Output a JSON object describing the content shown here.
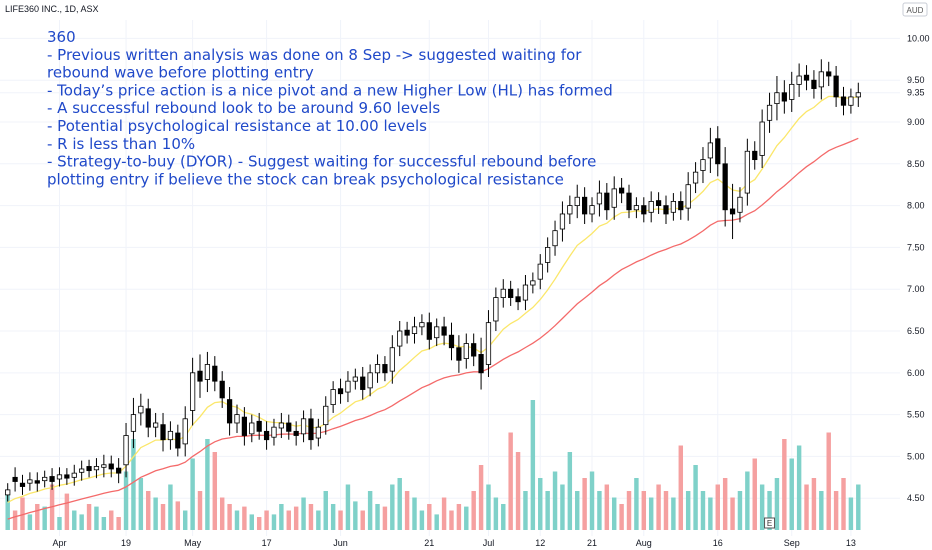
{
  "chart_data": {
    "type": "candlestick",
    "symbol": "LIFE360 INC., 1D, ASX",
    "currency": "AUD",
    "annotation": [
      "360",
      "- Previous written analysis was done on 8 Sep -> suggested waiting for",
      "rebound wave before plotting entry",
      "- Today’s price action is a nice pivot and a new Higher Low (HL) has formed",
      "- A successful rebound look to be around 9.60 levels",
      "- Potential psychological resistance at 10.00 levels",
      "- R is less than 10%",
      "- Strategy-to-buy (DYOR) - Suggest waiting for successful rebound before",
      "plotting entry if believe the stock can break psychological resistance"
    ],
    "y_ticks": [
      "10.00",
      "9.50",
      "9.35",
      "9.00",
      "8.50",
      "8.00",
      "7.50",
      "7.00",
      "6.50",
      "6.00",
      "5.50",
      "5.00",
      "4.50"
    ],
    "x_ticks": [
      {
        "label": "Apr",
        "index": 7
      },
      {
        "label": "19",
        "index": 16
      },
      {
        "label": "May",
        "index": 25
      },
      {
        "label": "17",
        "index": 35
      },
      {
        "label": "Jun",
        "index": 45
      },
      {
        "label": "21",
        "index": 57
      },
      {
        "label": "Jul",
        "index": 65
      },
      {
        "label": "12",
        "index": 72
      },
      {
        "label": "21",
        "index": 79
      },
      {
        "label": "Aug",
        "index": 86
      },
      {
        "label": "16",
        "index": 96
      },
      {
        "label": "Sep",
        "index": 106
      },
      {
        "label": "13",
        "index": 114
      }
    ],
    "ylim": [
      4.12,
      10.22
    ],
    "earnings_marker": {
      "label": "E",
      "index": 103
    },
    "closes": [
      4.6,
      4.7,
      4.64,
      4.72,
      4.68,
      4.75,
      4.7,
      4.78,
      4.74,
      4.8,
      4.85,
      4.83,
      4.88,
      4.9,
      4.85,
      4.8,
      5.25,
      5.5,
      5.6,
      5.35,
      5.4,
      5.2,
      5.3,
      5.1,
      5.45,
      6.0,
      5.9,
      6.1,
      5.9,
      5.7,
      5.4,
      5.5,
      5.25,
      5.4,
      5.3,
      5.2,
      5.35,
      5.4,
      5.3,
      5.25,
      5.45,
      5.2,
      5.35,
      5.6,
      5.8,
      5.75,
      5.9,
      5.95,
      5.8,
      6.0,
      6.1,
      6.0,
      6.3,
      6.5,
      6.45,
      6.55,
      6.6,
      6.4,
      6.55,
      6.45,
      6.3,
      6.15,
      6.35,
      6.2,
      6.0,
      6.6,
      6.9,
      7.0,
      6.9,
      6.85,
      7.05,
      7.1,
      7.3,
      7.5,
      7.7,
      7.9,
      8.0,
      8.1,
      7.9,
      8.0,
      8.15,
      7.95,
      8.2,
      8.15,
      7.95,
      8.0,
      7.9,
      8.05,
      8.0,
      7.9,
      8.05,
      7.95,
      8.25,
      8.4,
      8.55,
      8.75,
      8.5,
      7.95,
      7.9,
      8.1,
      8.65,
      8.55,
      9.0,
      9.2,
      9.35,
      9.25,
      9.45,
      9.55,
      9.5,
      9.4,
      9.6,
      9.55,
      9.3,
      9.2,
      9.3,
      9.35
    ],
    "open_offsets": [
      -0.06,
      0.05,
      0.04,
      -0.04,
      0.03,
      -0.04,
      0.06,
      -0.05,
      0.04,
      -0.05,
      -0.04,
      0.05,
      -0.04,
      -0.03,
      0.06,
      0.06,
      -0.35,
      -0.2,
      -0.08,
      0.22,
      -0.05,
      0.18,
      -0.1,
      0.18,
      -0.3,
      -0.45,
      0.12,
      -0.18,
      0.18,
      0.2,
      0.28,
      -0.1,
      0.22,
      -0.13,
      0.12,
      0.1,
      -0.12,
      -0.06,
      0.1,
      0.05,
      -0.18,
      0.25,
      -0.13,
      -0.22,
      -0.18,
      0.06,
      -0.13,
      -0.05,
      0.15,
      -0.18,
      -0.1,
      0.1,
      -0.28,
      -0.18,
      0.06,
      -0.08,
      -0.05,
      0.2,
      -0.13,
      0.1,
      0.15,
      0.15,
      -0.18,
      0.15,
      0.22,
      -0.5,
      -0.28,
      -0.1,
      0.1,
      0.06,
      -0.18,
      -0.05,
      -0.18,
      -0.18,
      -0.18,
      -0.18,
      -0.1,
      -0.1,
      0.2,
      -0.1,
      -0.13,
      0.2,
      -0.22,
      0.06,
      0.2,
      -0.05,
      0.1,
      -0.13,
      0.06,
      0.1,
      -0.13,
      0.1,
      -0.28,
      -0.13,
      -0.13,
      -0.18,
      0.3,
      0.55,
      0.06,
      -0.18,
      -0.5,
      0.1,
      -0.4,
      -0.18,
      -0.13,
      0.1,
      -0.18,
      -0.1,
      0.06,
      0.1,
      -0.18,
      0.05,
      0.25,
      0.1,
      -0.1,
      -0.05
    ],
    "wicks": [
      0.08,
      0.12,
      0.1,
      0.09,
      0.1,
      0.08,
      0.1,
      0.09,
      0.08,
      0.1,
      0.1,
      0.08,
      0.1,
      0.12,
      0.1,
      0.12,
      0.15,
      0.2,
      0.15,
      0.12,
      0.12,
      0.14,
      0.12,
      0.1,
      0.15,
      0.18,
      0.2,
      0.15,
      0.12,
      0.12,
      0.15,
      0.12,
      0.12,
      0.1,
      0.1,
      0.12,
      0.1,
      0.12,
      0.1,
      0.12,
      0.1,
      0.12,
      0.1,
      0.12,
      0.1,
      0.12,
      0.12,
      0.1,
      0.12,
      0.1,
      0.12,
      0.1,
      0.15,
      0.12,
      0.1,
      0.12,
      0.1,
      0.12,
      0.1,
      0.12,
      0.15,
      0.15,
      0.12,
      0.12,
      0.2,
      0.15,
      0.12,
      0.12,
      0.1,
      0.1,
      0.12,
      0.1,
      0.12,
      0.12,
      0.12,
      0.15,
      0.12,
      0.15,
      0.12,
      0.1,
      0.15,
      0.12,
      0.15,
      0.12,
      0.1,
      0.1,
      0.1,
      0.12,
      0.1,
      0.12,
      0.1,
      0.12,
      0.15,
      0.12,
      0.15,
      0.18,
      0.15,
      0.2,
      0.3,
      0.12,
      0.15,
      0.12,
      0.15,
      0.15,
      0.2,
      0.15,
      0.15,
      0.15,
      0.12,
      0.12,
      0.15,
      0.12,
      0.12,
      0.12,
      0.1,
      0.12
    ],
    "volume": [
      0.3,
      0.15,
      0.25,
      0.12,
      0.2,
      0.18,
      0.35,
      0.1,
      0.28,
      0.15,
      0.12,
      0.2,
      0.18,
      0.1,
      0.15,
      0.1,
      0.45,
      0.7,
      0.4,
      0.3,
      0.25,
      0.2,
      0.35,
      0.22,
      0.15,
      0.55,
      0.3,
      0.7,
      0.6,
      0.25,
      0.2,
      0.15,
      0.18,
      0.12,
      0.1,
      0.15,
      0.12,
      0.2,
      0.15,
      0.18,
      0.25,
      0.2,
      0.15,
      0.3,
      0.2,
      0.15,
      0.35,
      0.22,
      0.15,
      0.3,
      0.2,
      0.18,
      0.35,
      0.4,
      0.3,
      0.25,
      0.15,
      0.2,
      0.12,
      0.25,
      0.15,
      0.2,
      0.18,
      0.3,
      0.5,
      0.35,
      0.25,
      0.2,
      0.75,
      0.6,
      0.3,
      1.0,
      0.4,
      0.3,
      0.45,
      0.35,
      0.6,
      0.3,
      0.4,
      0.45,
      0.3,
      0.35,
      0.25,
      0.2,
      0.3,
      0.4,
      0.3,
      0.25,
      0.35,
      0.3,
      0.25,
      0.65,
      0.3,
      0.5,
      0.3,
      0.25,
      0.35,
      0.4,
      0.25,
      0.3,
      0.45,
      0.55,
      0.35,
      0.3,
      0.4,
      0.7,
      0.55,
      0.65,
      0.35,
      0.4,
      0.3,
      0.75,
      0.3,
      0.4,
      0.25,
      0.35
    ],
    "series": [
      {
        "type": "line",
        "color": "#fbe76a",
        "smoothing": "ema",
        "period": 10
      },
      {
        "type": "line",
        "color": "#f46a6a",
        "smoothing": "ema",
        "period": 30
      }
    ],
    "colors": {
      "up_candle": "#ffffff",
      "down_candle": "#000000",
      "candle_outline": "#000000",
      "volume_up": "#7fd1c9",
      "volume_down": "#f5a0a0",
      "annotation": "#2049c9",
      "grid": "#f0f3fa",
      "axis_text": "#131722"
    }
  }
}
